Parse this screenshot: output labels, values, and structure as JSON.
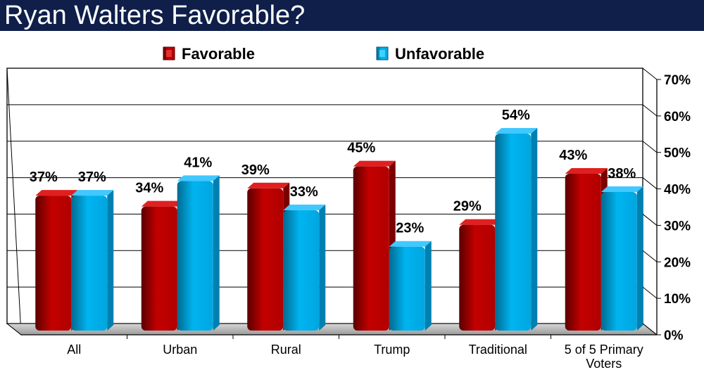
{
  "title": "Ryan Walters Favorable?",
  "colors": {
    "title_bg": "#0f1f4a",
    "favorable": "#c40000",
    "unfavorable": "#00b0f0"
  },
  "chart_data": {
    "type": "bar",
    "categories": [
      "All",
      "Urban",
      "Rural",
      "Trump",
      "Traditional",
      "5 of 5 Primary Voters"
    ],
    "category_lines": [
      [
        "All"
      ],
      [
        "Urban"
      ],
      [
        "Rural"
      ],
      [
        "Trump"
      ],
      [
        "Traditional"
      ],
      [
        "5 of 5 Primary",
        "Voters"
      ]
    ],
    "series": [
      {
        "name": "Favorable",
        "values": [
          37,
          34,
          39,
          45,
          29,
          43
        ],
        "labels": [
          "37%",
          "34%",
          "39%",
          "45%",
          "29%",
          "43%"
        ]
      },
      {
        "name": "Unfavorable",
        "values": [
          37,
          41,
          33,
          23,
          54,
          38
        ],
        "labels": [
          "37%",
          "41%",
          "33%",
          "23%",
          "54%",
          "38%"
        ]
      }
    ],
    "y_ticks": [
      "0%",
      "10%",
      "20%",
      "30%",
      "40%",
      "50%",
      "60%",
      "70%"
    ],
    "ylim": [
      0,
      70
    ],
    "y_axis_side": "right",
    "grid": true,
    "legend_position": "top"
  }
}
